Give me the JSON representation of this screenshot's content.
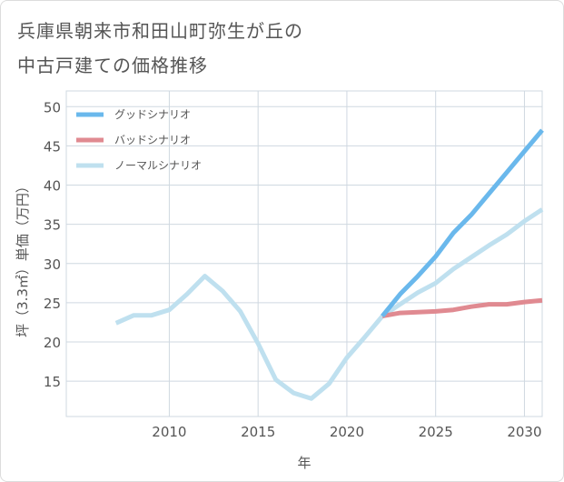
{
  "title": {
    "line1": "兵庫県朝来市和田山町弥生が丘の",
    "line2": "中古戸建ての価格推移"
  },
  "chart_data": {
    "type": "line",
    "xlabel": "年",
    "ylabel": "坪（3.3㎡）単価（万円）",
    "xlim": [
      2004.2,
      2031
    ],
    "ylim": [
      10.5,
      52
    ],
    "xticks": [
      2010,
      2015,
      2020,
      2025,
      2030
    ],
    "yticks": [
      15,
      20,
      25,
      30,
      35,
      40,
      45,
      50
    ],
    "grid": true,
    "legend_position": "top-left",
    "series": [
      {
        "name": "グッドシナリオ",
        "color": "#6ab8ec",
        "x": [
          2022,
          2023,
          2024,
          2025,
          2026,
          2027,
          2028,
          2029,
          2030,
          2031
        ],
        "y": [
          23.3,
          26.1,
          28.4,
          30.9,
          33.9,
          36.2,
          38.9,
          41.6,
          44.3,
          47.0
        ]
      },
      {
        "name": "バッドシナリオ",
        "color": "#e08a91",
        "x": [
          2022,
          2023,
          2024,
          2025,
          2026,
          2027,
          2028,
          2029,
          2030,
          2031
        ],
        "y": [
          23.3,
          23.7,
          23.8,
          23.9,
          24.1,
          24.5,
          24.8,
          24.8,
          25.1,
          25.3
        ]
      },
      {
        "name": "ノーマルシナリオ",
        "color": "#bfe0ef",
        "x": [
          2007,
          2008,
          2009,
          2010,
          2011,
          2012,
          2013,
          2014,
          2015,
          2016,
          2017,
          2018,
          2019,
          2020,
          2021,
          2022,
          2023,
          2024,
          2025,
          2026,
          2027,
          2028,
          2029,
          2030,
          2031
        ],
        "y": [
          22.4,
          23.4,
          23.4,
          24.1,
          26.1,
          28.4,
          26.5,
          23.9,
          19.8,
          15.2,
          13.5,
          12.8,
          14.7,
          18.0,
          20.6,
          23.3,
          24.8,
          26.3,
          27.5,
          29.3,
          30.8,
          32.3,
          33.7,
          35.4,
          36.9
        ]
      }
    ]
  }
}
